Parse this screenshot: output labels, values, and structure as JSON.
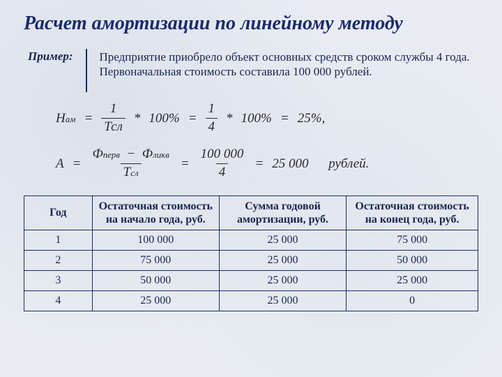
{
  "title": "Расчет амортизации по линейному методу",
  "example_label": "Пример:",
  "example_text": "Предприятие  приобрело объект основных средств сроком службы 4 года.  Первоначальная стоимость составила  100 000 рублей.",
  "formula1": {
    "lhs_sym": "Н",
    "lhs_sub": "ам",
    "f1_num": "1",
    "f1_den": "Тсл",
    "star": "*",
    "pct": "100%",
    "f2_num": "1",
    "f2_den": "4",
    "result": "25%,"
  },
  "formula2": {
    "lhs_sym": "А",
    "f1_num_a": "Ф",
    "f1_num_a_sub": "перв",
    "f1_minus": "−",
    "f1_num_b": "Ф",
    "f1_num_b_sub": "ликв",
    "f1_den": "Т",
    "f1_den_sub": "сл",
    "f2_num": "100 000",
    "f2_den": "4",
    "result": "25 000",
    "unit": "рублей."
  },
  "table": {
    "headers": [
      "Год",
      "Остаточная стоимость на начало года, руб.",
      "Сумма годовой амортизации, руб.",
      "Остаточная стоимость на конец года, руб."
    ],
    "rows": [
      [
        "1",
        "100 000",
        "25 000",
        "75 000"
      ],
      [
        "2",
        "75 000",
        "25 000",
        "50 000"
      ],
      [
        "3",
        "50 000",
        "25 000",
        "25 000"
      ],
      [
        "4",
        "25 000",
        "25 000",
        "0"
      ]
    ]
  }
}
